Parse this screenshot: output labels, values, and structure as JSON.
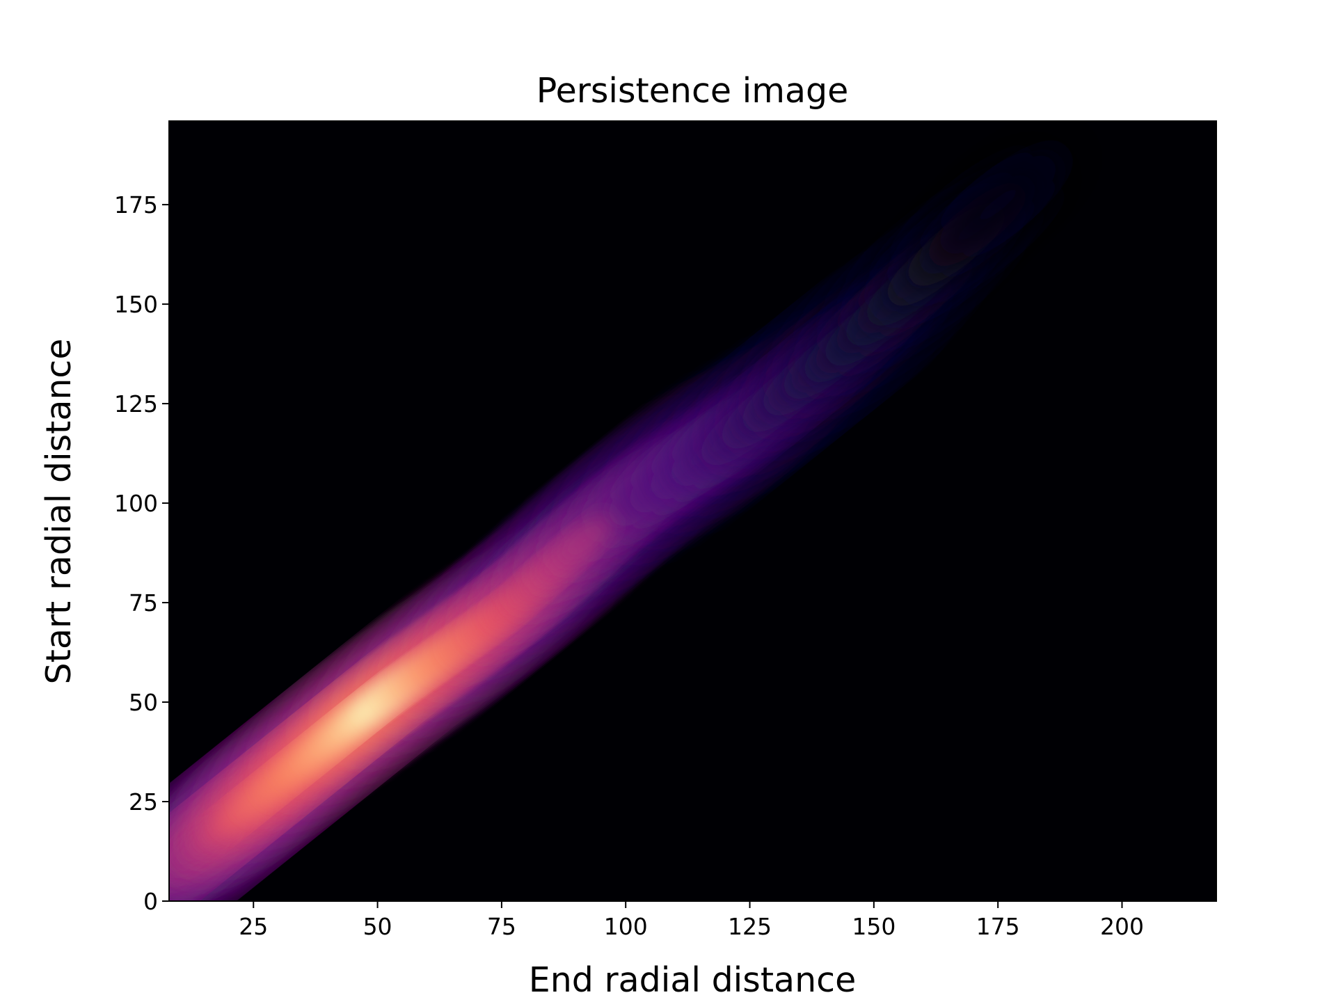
{
  "chart_data": {
    "type": "heatmap",
    "title": "Persistence image",
    "xlabel": "End radial distance",
    "ylabel": "Start radial distance",
    "xlim": [
      8,
      219
    ],
    "ylim": [
      0,
      196
    ],
    "xticks": [
      25,
      50,
      75,
      100,
      125,
      150,
      175,
      200
    ],
    "yticks": [
      0,
      25,
      50,
      75,
      100,
      125,
      150,
      175
    ],
    "colormap": "magma",
    "grid": false,
    "background_color": "#000004",
    "intensity_ridge": {
      "description_points": [
        {
          "end": 10,
          "start": 10,
          "intensity": 0.45
        },
        {
          "end": 25,
          "start": 25,
          "intensity": 0.8
        },
        {
          "end": 50,
          "start": 50,
          "intensity": 1.0
        },
        {
          "end": 75,
          "start": 72,
          "intensity": 0.75
        },
        {
          "end": 100,
          "start": 100,
          "intensity": 0.45
        },
        {
          "end": 125,
          "start": 120,
          "intensity": 0.3
        },
        {
          "end": 150,
          "start": 145,
          "intensity": 0.15
        },
        {
          "end": 175,
          "start": 175,
          "intensity": 0.04
        }
      ]
    }
  }
}
